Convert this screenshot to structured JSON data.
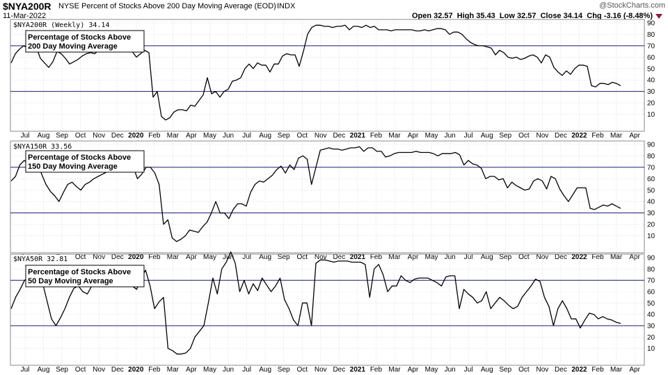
{
  "header": {
    "symbol": "$NYA200R",
    "description": "NYSE Percent of Stocks Above 200 Day Moving Average (EOD)",
    "exchange": "INDX",
    "date": "11-Mar-2022",
    "brand": "@StockCharts.com",
    "quote": "Open 32.57  High 35.43  Low 32.57  Close 34.14  Chg -3.16 (-8.48%)"
  },
  "colors": {
    "line": "#000000",
    "ref_line": "#1a1a6e",
    "grid": "#c8c8c8",
    "down_arrow": "#8b1a4a"
  },
  "x_axis": {
    "ticks": [
      {
        "label": "Jul",
        "year": false
      },
      {
        "label": "Aug",
        "year": false
      },
      {
        "label": "Sep",
        "year": false
      },
      {
        "label": "Oct",
        "year": false
      },
      {
        "label": "Nov",
        "year": false
      },
      {
        "label": "Dec",
        "year": false
      },
      {
        "label": "2020",
        "year": true
      },
      {
        "label": "Feb",
        "year": false
      },
      {
        "label": "Mar",
        "year": false
      },
      {
        "label": "Apr",
        "year": false
      },
      {
        "label": "May",
        "year": false
      },
      {
        "label": "Jun",
        "year": false
      },
      {
        "label": "Jul",
        "year": false
      },
      {
        "label": "Aug",
        "year": false
      },
      {
        "label": "Sep",
        "year": false
      },
      {
        "label": "Oct",
        "year": false
      },
      {
        "label": "Nov",
        "year": false
      },
      {
        "label": "Dec",
        "year": false
      },
      {
        "label": "2021",
        "year": true
      },
      {
        "label": "Feb",
        "year": false
      },
      {
        "label": "Mar",
        "year": false
      },
      {
        "label": "Apr",
        "year": false
      },
      {
        "label": "May",
        "year": false
      },
      {
        "label": "Jun",
        "year": false
      },
      {
        "label": "Jul",
        "year": false
      },
      {
        "label": "Aug",
        "year": false
      },
      {
        "label": "Sep",
        "year": false
      },
      {
        "label": "Oct",
        "year": false
      },
      {
        "label": "Nov",
        "year": false
      },
      {
        "label": "Dec",
        "year": false
      },
      {
        "label": "2022",
        "year": true
      },
      {
        "label": "Feb",
        "year": false
      },
      {
        "label": "Mar",
        "year": false
      },
      {
        "label": "Apr",
        "year": false
      }
    ]
  },
  "chart_data": [
    {
      "type": "line",
      "series_label": "$NYA200R (Weekly) 34.14",
      "annotation": "Percentage of Stocks Above 200 Day Moving Average",
      "ylim": [
        0,
        90
      ],
      "yticks": [
        10,
        20,
        30,
        40,
        50,
        60,
        70,
        80,
        90
      ],
      "ref_lines": [
        70,
        30
      ],
      "values": [
        55,
        63,
        67,
        70,
        68,
        66,
        69,
        59,
        55,
        51,
        56,
        65,
        63,
        59,
        54,
        56,
        58,
        61,
        63,
        64,
        63,
        66,
        67,
        72,
        68,
        74,
        76,
        74,
        71,
        65,
        60,
        63,
        66,
        64,
        25,
        30,
        8,
        5,
        7,
        12,
        14,
        14,
        13,
        18,
        17,
        22,
        27,
        42,
        28,
        30,
        25,
        30,
        32,
        39,
        40,
        42,
        50,
        54,
        50,
        55,
        53,
        53,
        47,
        54,
        54,
        61,
        63,
        62,
        62,
        52,
        65,
        80,
        86,
        88,
        88,
        87,
        87,
        86,
        87,
        87,
        88,
        84,
        87,
        87,
        86,
        88,
        86,
        87,
        84,
        84,
        84,
        83,
        84,
        84,
        84,
        84,
        84,
        83,
        83,
        84,
        83,
        84,
        85,
        85,
        84,
        80,
        82,
        82,
        80,
        76,
        73,
        71,
        70,
        70,
        69,
        68,
        62,
        66,
        64,
        60,
        59,
        60,
        58,
        59,
        61,
        62,
        60,
        55,
        62,
        60,
        51,
        47,
        44,
        48,
        45,
        50,
        53,
        53,
        52,
        35,
        34,
        37,
        37,
        36,
        38,
        37,
        35
      ]
    },
    {
      "type": "line",
      "series_label": "$NYA150R 33.56",
      "annotation": "Percentage of Stocks Above 150 Day Moving Average",
      "ylim": [
        0,
        90
      ],
      "yticks": [
        10,
        20,
        30,
        40,
        50,
        60,
        70,
        80,
        90
      ],
      "ref_lines": [
        70,
        30
      ],
      "values": [
        58,
        62,
        72,
        76,
        73,
        74,
        76,
        64,
        55,
        49,
        45,
        40,
        48,
        55,
        57,
        53,
        50,
        55,
        57,
        60,
        62,
        64,
        66,
        70,
        66,
        70,
        72,
        74,
        71,
        60,
        64,
        70,
        70,
        65,
        55,
        20,
        24,
        8,
        5,
        7,
        10,
        15,
        14,
        13,
        18,
        22,
        30,
        40,
        30,
        30,
        25,
        33,
        38,
        38,
        36,
        48,
        55,
        58,
        57,
        60,
        63,
        68,
        71,
        65,
        72,
        68,
        78,
        80,
        77,
        55,
        70,
        85,
        86,
        87,
        86,
        86,
        85,
        86,
        87,
        87,
        88,
        84,
        87,
        87,
        84,
        84,
        79,
        80,
        82,
        83,
        83,
        83,
        83,
        84,
        83,
        83,
        83,
        82,
        80,
        82,
        82,
        82,
        83,
        81,
        72,
        76,
        73,
        72,
        69,
        60,
        62,
        62,
        59,
        60,
        52,
        57,
        54,
        52,
        50,
        51,
        58,
        60,
        58,
        51,
        62,
        60,
        51,
        45,
        40,
        46,
        52,
        52,
        52,
        34,
        33,
        35,
        37,
        36,
        38,
        36,
        34
      ]
    },
    {
      "type": "line",
      "series_label": "$NYA50R 32.81",
      "annotation": "Percentage of Stocks Above 50 Day Moving Average",
      "ylim": [
        0,
        90
      ],
      "yticks": [
        10,
        20,
        30,
        40,
        50,
        60,
        70,
        80,
        90
      ],
      "ref_lines": [
        70,
        30
      ],
      "values": [
        45,
        55,
        62,
        70,
        73,
        74,
        72,
        68,
        52,
        36,
        30,
        37,
        45,
        55,
        63,
        65,
        60,
        58,
        65,
        70,
        70,
        71,
        68,
        65,
        71,
        73,
        70,
        65,
        62,
        72,
        79,
        65,
        45,
        51,
        55,
        10,
        8,
        5,
        5,
        6,
        10,
        20,
        25,
        30,
        50,
        72,
        58,
        80,
        86,
        95,
        85,
        60,
        70,
        58,
        67,
        61,
        72,
        66,
        60,
        65,
        72,
        53,
        45,
        35,
        30,
        50,
        50,
        30,
        85,
        88,
        88,
        87,
        86,
        87,
        87,
        87,
        86,
        86,
        86,
        84,
        55,
        80,
        84,
        75,
        60,
        65,
        65,
        74,
        70,
        68,
        71,
        72,
        72,
        72,
        70,
        68,
        65,
        73,
        74,
        74,
        45,
        62,
        58,
        55,
        50,
        52,
        60,
        45,
        50,
        55,
        52,
        48,
        45,
        47,
        55,
        60,
        65,
        71,
        69,
        55,
        47,
        30,
        45,
        52,
        45,
        36,
        36,
        28,
        35,
        41,
        40,
        36,
        38,
        36,
        35,
        33,
        32
      ]
    }
  ]
}
